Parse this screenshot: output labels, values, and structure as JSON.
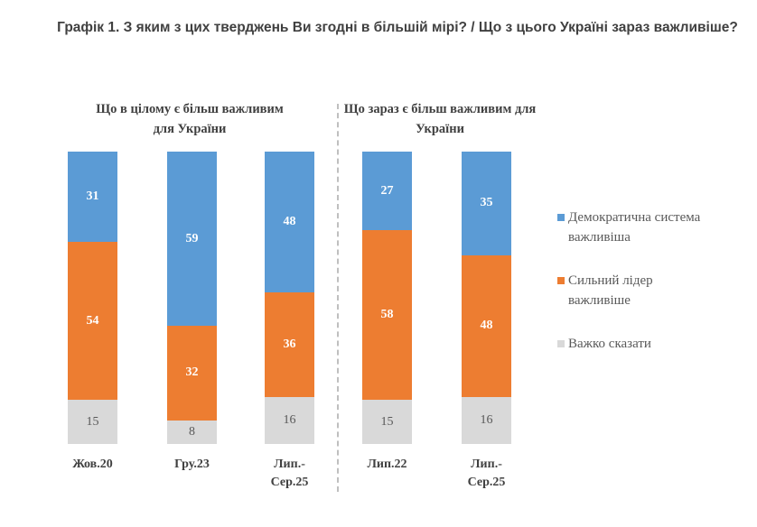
{
  "chart_data": {
    "type": "bar",
    "stacked": true,
    "title": "Графік 1. З яким з цих тверджень Ви згодні в більшій мірі? / Що з цього Україні зараз важливіше?",
    "groups": [
      {
        "label": "Що в цілому є більш важливим для України",
        "categories": [
          "Жов.20",
          "Гру.23",
          "Лип.-Сер.25"
        ]
      },
      {
        "label": "Що зараз є більш важливим для України",
        "categories": [
          "Лип.22",
          "Лип.-Сер.25"
        ]
      }
    ],
    "categories": [
      "Жов.20",
      "Гру.23",
      "Лип.-Сер.25",
      "Лип.22",
      "Лип.-Сер.25"
    ],
    "series": [
      {
        "name": "Демократична система важливіша",
        "color": "#5b9bd5",
        "values": [
          31,
          59,
          48,
          27,
          35
        ]
      },
      {
        "name": "Сильний лідер важливіше",
        "color": "#ed7d31",
        "values": [
          54,
          32,
          36,
          58,
          48
        ]
      },
      {
        "name": "Важко сказати",
        "color": "#d9d9d9",
        "values": [
          15,
          8,
          16,
          15,
          16
        ]
      }
    ],
    "legend_position": "right",
    "grid": false
  }
}
